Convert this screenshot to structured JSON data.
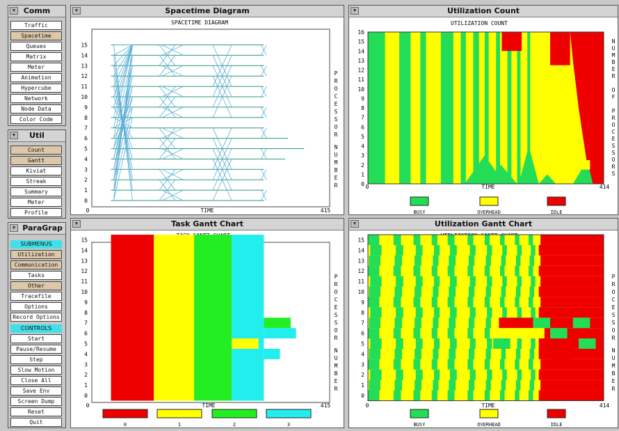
{
  "comm_panel": {
    "title": "Comm",
    "items": [
      "Traffic",
      "Spacetime",
      "Queues",
      "Matrix",
      "Meter",
      "Animation",
      "Hypercube",
      "Network",
      "Node Data",
      "Color Code"
    ],
    "selected": [
      1
    ]
  },
  "util_panel": {
    "title": "Util",
    "items": [
      "Count",
      "Gantt",
      "Kiviat",
      "Streak",
      "Summary",
      "Meter",
      "Profile"
    ],
    "selected": [
      0,
      1
    ]
  },
  "paragraph_panel": {
    "title": "ParaGrap",
    "submenus_label": "SUBMENUS",
    "submenus": [
      "Utilization",
      "Communication",
      "Tasks",
      "Other",
      "Tracefile",
      "Options",
      "Record Options"
    ],
    "submenus_selected": [
      0,
      1,
      3
    ],
    "controls_label": "CONTROLS",
    "controls": [
      "Start",
      "Pause/Resume",
      "Step",
      "Slow Motion",
      "Close All",
      "Save Env",
      "Screen Dump",
      "Reset",
      "Quit"
    ]
  },
  "windows": {
    "spacetime": {
      "title": "Spacetime Diagram",
      "caption": "SPACETIME DIAGRAM",
      "xlabel": "TIME",
      "ylabel": "PROCESSOR NUMBER",
      "xmin": "0",
      "xmax": "415"
    },
    "util_count": {
      "title": "Utilization Count",
      "caption": "UTILIZATION COUNT",
      "xlabel": "TIME",
      "ylabel": "NUMBER OF PROCESSORS",
      "xmin": "0",
      "xmax": "414"
    },
    "task_gantt": {
      "title": "Task Gantt Chart",
      "caption": "TASK GANTT CHART",
      "xlabel": "TIME",
      "ylabel": "PROCESSOR NUMBER",
      "xmin": "0",
      "xmax": "415"
    },
    "util_gantt": {
      "title": "Utilization Gantt Chart",
      "caption": "UTILIZATION GANTT CHART",
      "xlabel": "TIME",
      "ylabel": "PROCESSOR NUMBER",
      "xmin": "0",
      "xmax": "414"
    }
  },
  "legends": {
    "utilization": [
      {
        "label": "BUSY",
        "color": "#22dd55"
      },
      {
        "label": "OVERHEAD",
        "color": "#ffff00"
      },
      {
        "label": "IDLE",
        "color": "#ee0000"
      }
    ],
    "tasks": [
      {
        "label": "0",
        "color": "#ee0000"
      },
      {
        "label": "1",
        "color": "#ffff00"
      },
      {
        "label": "2",
        "color": "#22ee22"
      },
      {
        "label": "3",
        "color": "#22eeee"
      }
    ]
  },
  "colors": {
    "busy": "#22dd55",
    "overhead": "#ffff00",
    "idle": "#ee0000",
    "task0": "#ee0000",
    "task1": "#ffff00",
    "task2": "#22ee22",
    "task3": "#22eeee",
    "message": "#5aaed8",
    "timeline": "#2a9a7a"
  },
  "chart_data": [
    {
      "type": "line",
      "title": "SPACETIME DIAGRAM",
      "xlabel": "TIME",
      "ylabel": "PROCESSOR NUMBER",
      "xlim": [
        0,
        415
      ],
      "ylim": [
        0,
        15
      ],
      "description_series": "processor timelines 0-15 with message lines between processors",
      "timeline_end": [
        300,
        300,
        300,
        300,
        340,
        375,
        345,
        300,
        300,
        300,
        300,
        300,
        300,
        300,
        300,
        300
      ]
    },
    {
      "type": "area",
      "title": "UTILIZATION COUNT",
      "xlabel": "TIME",
      "ylabel": "NUMBER OF PROCESSORS",
      "xlim": [
        0,
        414
      ],
      "ylim": [
        0,
        16
      ],
      "y_ticks": [
        0,
        1,
        2,
        3,
        4,
        5,
        6,
        7,
        8,
        9,
        10,
        11,
        12,
        13,
        14,
        15,
        16
      ],
      "series": [
        {
          "name": "BUSY"
        },
        {
          "name": "OVERHEAD"
        },
        {
          "name": "IDLE"
        }
      ]
    },
    {
      "type": "bar",
      "title": "TASK GANTT CHART",
      "xlabel": "TIME",
      "ylabel": "PROCESSOR NUMBER",
      "xlim": [
        0,
        415
      ],
      "ylim": [
        0,
        15
      ],
      "tasks": [
        {
          "name": "0",
          "start": 15,
          "end": 95
        },
        {
          "name": "1",
          "start": 95,
          "end": 170
        },
        {
          "name": "2",
          "start": 170,
          "end": 240
        },
        {
          "name": "3",
          "start": 240,
          "end": 300
        }
      ]
    },
    {
      "type": "bar",
      "title": "UTILIZATION GANTT CHART",
      "xlabel": "TIME",
      "ylabel": "PROCESSOR NUMBER",
      "xlim": [
        0,
        414
      ],
      "ylim": [
        0,
        15
      ],
      "series": [
        {
          "name": "BUSY"
        },
        {
          "name": "OVERHEAD"
        },
        {
          "name": "IDLE"
        }
      ]
    }
  ]
}
